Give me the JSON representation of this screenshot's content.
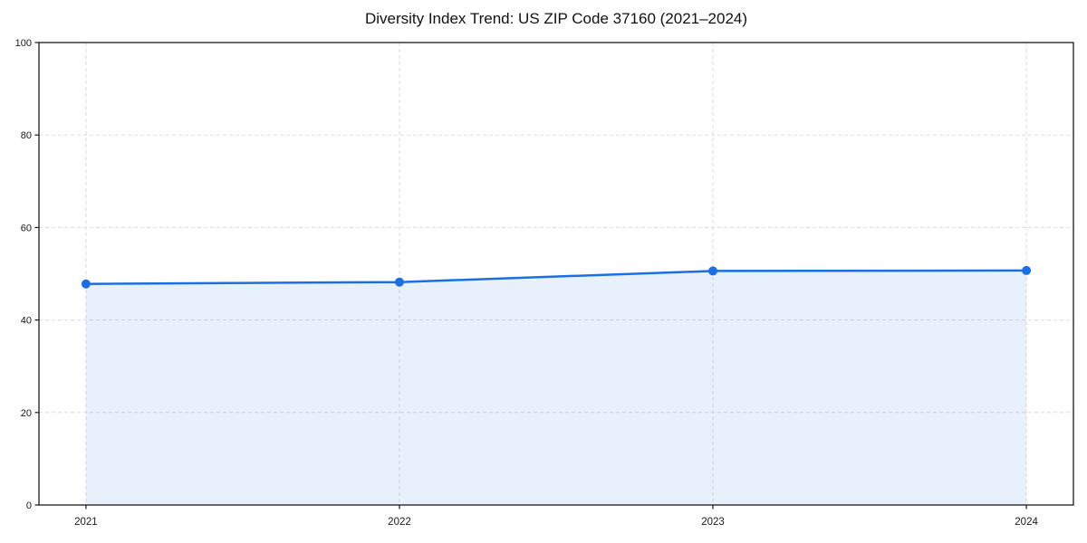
{
  "chart_data": {
    "type": "area",
    "title": "Diversity Index Trend: US ZIP Code 37160 (2021–2024)",
    "series_name": "Diversity Index",
    "x": [
      2021,
      2022,
      2023,
      2024
    ],
    "x_labels": [
      "2021",
      "2022",
      "2023",
      "2024"
    ],
    "values": [
      47.8,
      48.2,
      50.6,
      50.7
    ],
    "xlabel": "",
    "ylabel": "",
    "yticks": [
      0,
      20,
      40,
      60,
      80,
      100
    ],
    "ylim": [
      0,
      100
    ],
    "xlim": [
      2020.85,
      2024.15
    ],
    "grid": true,
    "grid_style": "dashed",
    "legend_position": "none",
    "marker": "circle",
    "colors": {
      "line": "#1a6fe3",
      "marker": "#1a6fe3",
      "fill": "#1a6fe3",
      "grid": "#dcdcdc",
      "spine": "#1a1a1a",
      "tick_label": "#1a1a1a",
      "title": "#111111",
      "background": "#ffffff"
    },
    "fill_opacity": 0.1
  }
}
